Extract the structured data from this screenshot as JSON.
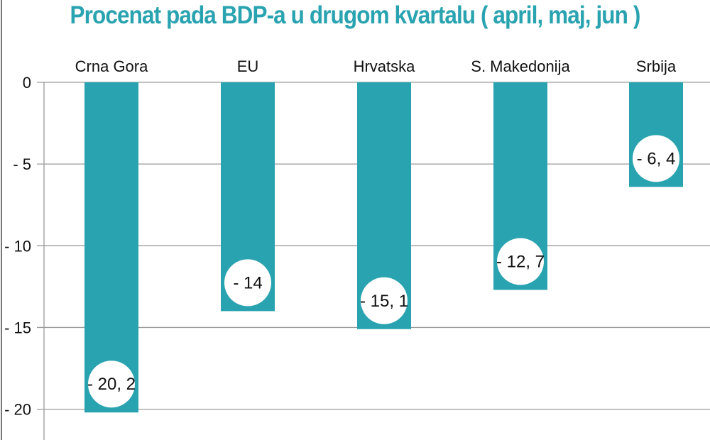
{
  "chart_data": {
    "type": "bar",
    "title": "Procenat pada BDP-a u drugom kvartalu ( april, maj, jun )",
    "categories": [
      "Crna Gora",
      "EU",
      "Hrvatska",
      "S. Makedonija",
      "Srbija"
    ],
    "values": [
      -20.2,
      -14,
      -15.1,
      -12.7,
      -6.4
    ],
    "data_labels": [
      "- 20, 2",
      "- 14",
      "- 15, 1",
      "- 12, 7",
      "- 6, 4"
    ],
    "yticks": [
      0,
      -5,
      -10,
      -15,
      -20
    ],
    "ytick_labels": [
      "0",
      "- 5",
      "- 10",
      "- 15",
      "- 20"
    ],
    "ylim": [
      -21.5,
      0
    ],
    "xlabel": "",
    "ylabel": "",
    "grid": true,
    "category_labels_position": "top",
    "colors": {
      "bar": "#2aa3b0",
      "title": "#2aa3b0",
      "grid": "#9a9a9a",
      "label_circle": "#ffffff"
    }
  }
}
